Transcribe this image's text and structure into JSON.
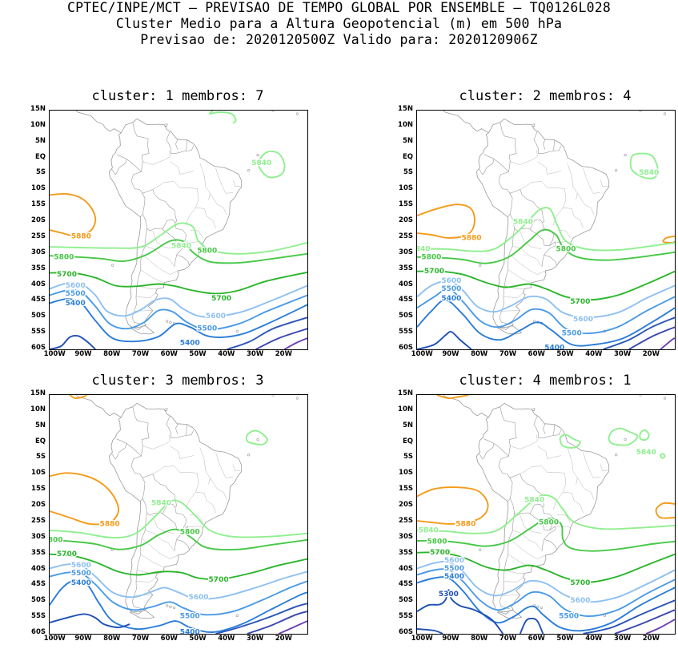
{
  "header": {
    "line1": "CPTEC/INPE/MCT – PREVISAO DE TEMPO GLOBAL POR ENSEMBLE – TQ0126L028",
    "line2": "Cluster Medio para a Altura Geopotencial (m) em 500 hPa",
    "line3": "Previsao de: 2020120500Z   Valido para: 2020120906Z"
  },
  "axes": {
    "lat_ticks": [
      "15N",
      "10N",
      "5N",
      "EQ",
      "5S",
      "10S",
      "15S",
      "20S",
      "25S",
      "30S",
      "35S",
      "40S",
      "45S",
      "50S",
      "55S",
      "60S"
    ],
    "lon_ticks": [
      "100W",
      "90W",
      "80W",
      "70W",
      "60W",
      "50W",
      "40W",
      "30W",
      "20W"
    ]
  },
  "colors": {
    "c5300": "#1f4fb5",
    "c5400": "#2a7dd9",
    "c5500": "#4a9ae6",
    "c5600": "#8ec0f2",
    "c5700": "#2bb52b",
    "c5800": "#46c846",
    "c5840": "#8fef8f",
    "c5880": "#f59a19",
    "deep1": "#2b55b7",
    "deep2": "#3a47b0",
    "deep3": "#6a43b8",
    "coast": "#9a9a9a"
  },
  "panels": [
    {
      "title": "cluster: 1   membros: 7",
      "labels": [
        {
          "text": "5840",
          "lon": -28,
          "lat": -1.5,
          "c": "c5840"
        },
        {
          "text": "5880",
          "lon": -91,
          "lat": -24.5,
          "c": "c5880"
        },
        {
          "text": "5840",
          "lon": -56,
          "lat": -27.5,
          "c": "c5840"
        },
        {
          "text": "5800",
          "lon": -97,
          "lat": -31,
          "c": "c5800"
        },
        {
          "text": "5800",
          "lon": -47,
          "lat": -29,
          "c": "c5800"
        },
        {
          "text": "5700",
          "lon": -96,
          "lat": -36.5,
          "c": "c5700"
        },
        {
          "text": "5700",
          "lon": -42,
          "lat": -44,
          "c": "c5700"
        },
        {
          "text": "5600",
          "lon": -93,
          "lat": -40,
          "c": "c5600"
        },
        {
          "text": "5500",
          "lon": -93,
          "lat": -42.5,
          "c": "c5500"
        },
        {
          "text": "5400",
          "lon": -93,
          "lat": -45.5,
          "c": "c5400"
        },
        {
          "text": "5600",
          "lon": -44,
          "lat": -49.5,
          "c": "c5600"
        },
        {
          "text": "5500",
          "lon": -47,
          "lat": -53.5,
          "c": "c5500"
        },
        {
          "text": "5400",
          "lon": -53,
          "lat": -58,
          "c": "c5400"
        }
      ]
    },
    {
      "title": "cluster: 2   membros: 4",
      "labels": [
        {
          "text": "5840",
          "lon": -21,
          "lat": -4.5,
          "c": "c5840"
        },
        {
          "text": "5840",
          "lon": -65,
          "lat": -20,
          "c": "c5840"
        },
        {
          "text": "5880",
          "lon": -83,
          "lat": -25,
          "c": "c5880"
        },
        {
          "text": "840",
          "lon": -100,
          "lat": -28.5,
          "c": "c5840"
        },
        {
          "text": "5800",
          "lon": -97,
          "lat": -31,
          "c": "c5800"
        },
        {
          "text": "5800",
          "lon": -50,
          "lat": -28.5,
          "c": "c5800"
        },
        {
          "text": "5700",
          "lon": -96,
          "lat": -35.5,
          "c": "c5700"
        },
        {
          "text": "5700",
          "lon": -45,
          "lat": -45,
          "c": "c5700"
        },
        {
          "text": "5600",
          "lon": -90,
          "lat": -38.5,
          "c": "c5600"
        },
        {
          "text": "5500",
          "lon": -90,
          "lat": -41,
          "c": "c5500"
        },
        {
          "text": "5400",
          "lon": -90,
          "lat": -44,
          "c": "c5400"
        },
        {
          "text": "5600",
          "lon": -44,
          "lat": -50.5,
          "c": "c5600"
        },
        {
          "text": "5500",
          "lon": -48,
          "lat": -55,
          "c": "c5500"
        },
        {
          "text": "5400",
          "lon": -54,
          "lat": -59.5,
          "c": "c5400"
        }
      ]
    },
    {
      "title": "cluster: 3   membros: 3",
      "labels": [
        {
          "text": "5880",
          "lon": -81,
          "lat": -25.5,
          "c": "c5880"
        },
        {
          "text": "5840",
          "lon": -63,
          "lat": -19,
          "c": "c5840"
        },
        {
          "text": "800",
          "lon": -100,
          "lat": -30.5,
          "c": "c5800"
        },
        {
          "text": "5800",
          "lon": -53,
          "lat": -28,
          "c": "c5800"
        },
        {
          "text": "5700",
          "lon": -96,
          "lat": -35,
          "c": "c5700"
        },
        {
          "text": "5700",
          "lon": -43,
          "lat": -43,
          "c": "c5700"
        },
        {
          "text": "5600",
          "lon": -91,
          "lat": -38.5,
          "c": "c5600"
        },
        {
          "text": "5500",
          "lon": -91,
          "lat": -41,
          "c": "c5500"
        },
        {
          "text": "5400",
          "lon": -91,
          "lat": -44,
          "c": "c5400"
        },
        {
          "text": "5600",
          "lon": -50,
          "lat": -48.5,
          "c": "c5600"
        },
        {
          "text": "5500",
          "lon": -53,
          "lat": -54.5,
          "c": "c5500"
        },
        {
          "text": "5400",
          "lon": -53,
          "lat": -59.5,
          "c": "c5400"
        }
      ]
    },
    {
      "title": "cluster: 4   membros: 1",
      "labels": [
        {
          "text": "5840",
          "lon": -22,
          "lat": -3,
          "c": "c5840"
        },
        {
          "text": "5840",
          "lon": -61,
          "lat": -18,
          "c": "c5840"
        },
        {
          "text": "5880",
          "lon": -85,
          "lat": -25.5,
          "c": "c5880"
        },
        {
          "text": "5840",
          "lon": -98,
          "lat": -27.5,
          "c": "c5840"
        },
        {
          "text": "5800",
          "lon": -95,
          "lat": -31,
          "c": "c5800"
        },
        {
          "text": "5800",
          "lon": -56,
          "lat": -25,
          "c": "c5800"
        },
        {
          "text": "5700",
          "lon": -94,
          "lat": -34.5,
          "c": "c5700"
        },
        {
          "text": "5700",
          "lon": -45,
          "lat": -44,
          "c": "c5700"
        },
        {
          "text": "5600",
          "lon": -89,
          "lat": -37,
          "c": "c5600"
        },
        {
          "text": "5500",
          "lon": -89,
          "lat": -39.5,
          "c": "c5500"
        },
        {
          "text": "5400",
          "lon": -89,
          "lat": -42,
          "c": "c5400"
        },
        {
          "text": "5300",
          "lon": -91,
          "lat": -47.5,
          "c": "c5300"
        },
        {
          "text": "5600",
          "lon": -45,
          "lat": -49.5,
          "c": "c5600"
        },
        {
          "text": "5500",
          "lon": -49,
          "lat": -54.5,
          "c": "c5500"
        }
      ]
    }
  ]
}
